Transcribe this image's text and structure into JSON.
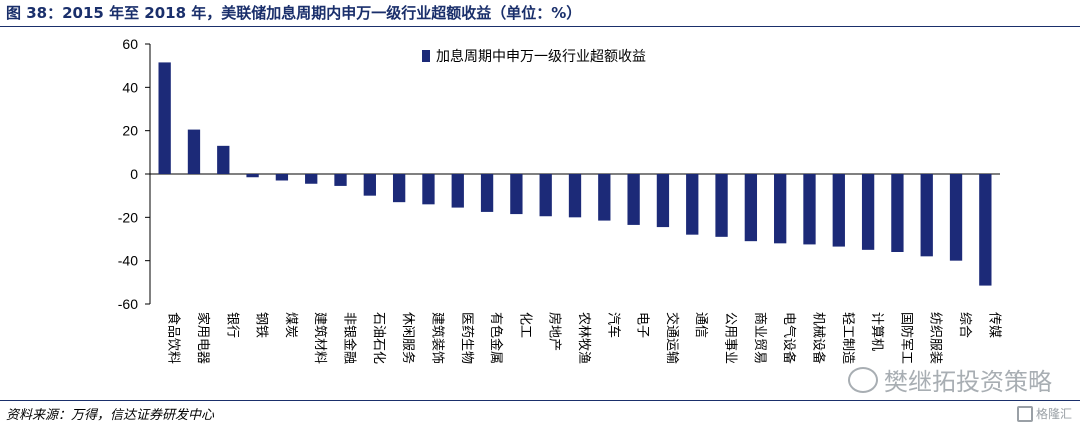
{
  "title": "图 38：2015 年至 2018 年，美联储加息周期内申万一级行业超额收益（单位：%）",
  "source": "资料来源：万得，信达证券研发中心",
  "watermark": "樊继拓投资策略",
  "logo": "格隆汇",
  "colors": {
    "bar": "#1c2a78",
    "title": "#1a2f6b"
  },
  "chart_data": {
    "type": "bar",
    "categories": [
      "食品饮料",
      "家用电器",
      "银行",
      "钢铁",
      "煤炭",
      "建筑材料",
      "非银金融",
      "石油石化",
      "休闲服务",
      "建筑装饰",
      "医药生物",
      "有色金属",
      "化工",
      "房地产",
      "农林牧渔",
      "汽车",
      "电子",
      "交通运输",
      "通信",
      "公用事业",
      "商业贸易",
      "电气设备",
      "机械设备",
      "轻工制造",
      "计算机",
      "国防军工",
      "纺织服装",
      "综合",
      "传媒"
    ],
    "series": [
      {
        "name": "加息周期中申万一级行业超额收益",
        "values": [
          51.5,
          20.5,
          13,
          -1.5,
          -3,
          -4.5,
          -5.5,
          -10,
          -13,
          -14,
          -15.5,
          -17.5,
          -18.5,
          -19.5,
          -20,
          -21.5,
          -23.5,
          -24.5,
          -28,
          -29,
          -31,
          -32,
          -32.5,
          -33.5,
          -35,
          -36,
          -38,
          -40,
          -51.5
        ]
      }
    ],
    "yticks": [
      60,
      40,
      20,
      0,
      -20,
      -40,
      -60
    ],
    "ylim": [
      -60,
      60
    ],
    "legend_position": "top",
    "grid": false
  }
}
